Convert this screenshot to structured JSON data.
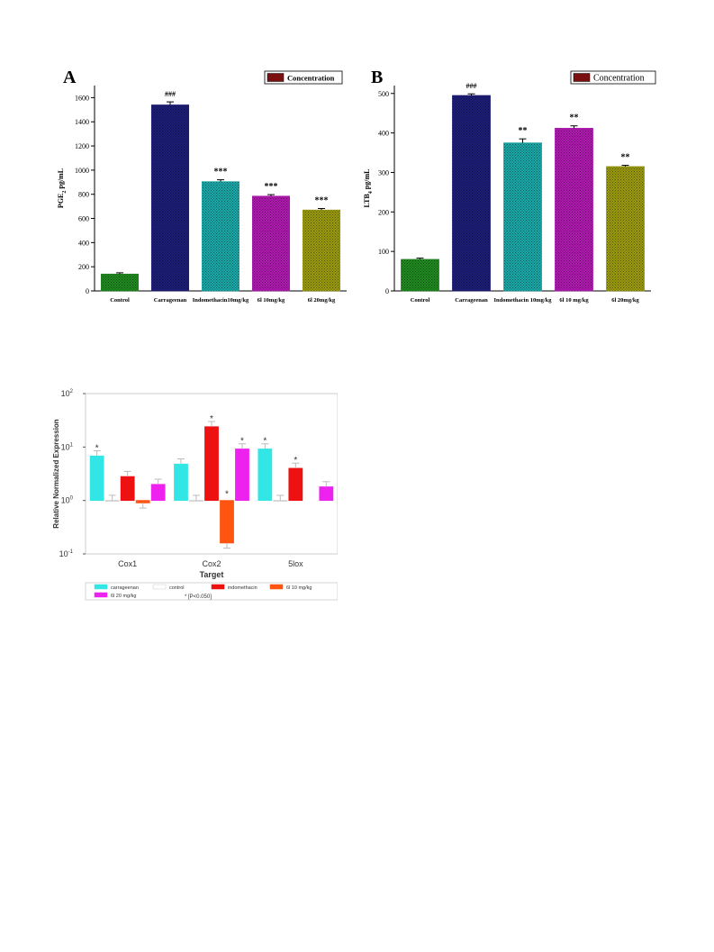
{
  "chart_data": [
    {
      "type": "bar",
      "panel_label": "A",
      "ylabel_main": "PGE",
      "ylabel_sub": "2",
      "ylabel_rest": " pg/mL",
      "ylim": [
        0,
        1700
      ],
      "yticks": [
        "0",
        "200",
        "400",
        "600",
        "800",
        "1000",
        "1200",
        "1400",
        "1600"
      ],
      "categories": [
        "Control",
        "Carrageenan",
        "Indomethacin10mg/kg",
        "6l 10mg/kg",
        "6l 20mg/kg"
      ],
      "values": [
        140,
        1540,
        905,
        785,
        670
      ],
      "errors": [
        10,
        25,
        15,
        12,
        12
      ],
      "annotations": [
        "",
        "###",
        "***",
        "***",
        "***"
      ],
      "legend": "Concentration",
      "legend_position": "top-right",
      "colors": [
        "#1f8a1f",
        "#1e1e78",
        "#1aa7a7",
        "#b01ab0",
        "#9a9a10"
      ]
    },
    {
      "type": "bar",
      "panel_label": "B",
      "ylabel_main": "LTB",
      "ylabel_sub": "4",
      "ylabel_rest": " pg/mL",
      "ylim": [
        0,
        520
      ],
      "yticks": [
        "0",
        "100",
        "200",
        "300",
        "400",
        "500"
      ],
      "categories": [
        "Control",
        "Carrageenan",
        "Indomethacin 10mg/kg",
        "6l 10 mg/kg",
        "6l 20mg/kg"
      ],
      "values": [
        80,
        495,
        375,
        412,
        315
      ],
      "errors": [
        3,
        4,
        10,
        6,
        3
      ],
      "annotations": [
        "",
        "###",
        "**",
        "**",
        "**"
      ],
      "legend": "Concentration",
      "legend_position": "top-right",
      "colors": [
        "#1f8a1f",
        "#1e1e78",
        "#1aa7a7",
        "#b01ab0",
        "#9a9a10"
      ]
    },
    {
      "type": "bar",
      "scale": "log",
      "ylabel": "Relative Normalized Expression",
      "xlabel": "Target",
      "ylim": [
        0.1,
        100
      ],
      "ytick_base": "10",
      "ytick_exps": [
        "-1",
        "0",
        "1",
        "2"
      ],
      "categories": [
        "Cox1",
        "Cox2",
        "5lox"
      ],
      "series": [
        {
          "name": "carrageenan",
          "color": "#33e6e6",
          "values": [
            6.8,
            4.8,
            9.2
          ],
          "stars": [
            "*",
            "",
            "*"
          ]
        },
        {
          "name": "control",
          "color": "#ffffff",
          "values": [
            1.0,
            1.0,
            1.0
          ],
          "stars": [
            "",
            "",
            ""
          ]
        },
        {
          "name": "indomethacin",
          "color": "#ee1111",
          "values": [
            2.8,
            24,
            4.0
          ],
          "stars": [
            "",
            "*",
            "*"
          ]
        },
        {
          "name": "6l 10 mg/kg",
          "color": "#ff5511",
          "values": [
            0.9,
            0.16,
            null
          ],
          "stars": [
            "",
            "*",
            ""
          ]
        },
        {
          "name": "6l 20 mg/kg",
          "color": "#ee22ee",
          "values": [
            2.0,
            9.2,
            1.8
          ],
          "stars": [
            "",
            "*",
            ""
          ]
        }
      ],
      "significance_note": "* [P<0.050]",
      "legend_position": "bottom"
    }
  ]
}
